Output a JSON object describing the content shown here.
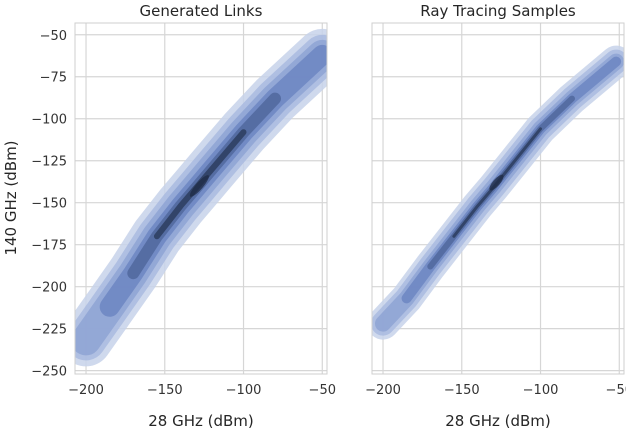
{
  "chart_data": [
    {
      "type": "kde-contour",
      "title": "Generated Links",
      "xlabel": "28 GHz (dBm)",
      "ylabel": "140 GHz (dBm)",
      "xlim": [
        -207,
        -47
      ],
      "ylim": [
        -252,
        -43
      ],
      "xticks": [
        -200,
        -150,
        -100,
        -50
      ],
      "yticks": [
        -50,
        -75,
        -100,
        -125,
        -150,
        -175,
        -200,
        -225,
        -250
      ],
      "grid": true,
      "color": "#4c72b0",
      "density_ridge": [
        {
          "x": -200,
          "y": -232
        },
        {
          "x": -185,
          "y": -212
        },
        {
          "x": -170,
          "y": -192
        },
        {
          "x": -155,
          "y": -170
        },
        {
          "x": -140,
          "y": -152
        },
        {
          "x": -130,
          "y": -141
        },
        {
          "x": -120,
          "y": -130
        },
        {
          "x": -100,
          "y": -108
        },
        {
          "x": -80,
          "y": -88
        },
        {
          "x": -50,
          "y": -62
        }
      ],
      "peak": {
        "x": -128,
        "y": -140
      }
    },
    {
      "type": "kde-contour",
      "title": "Ray Tracing Samples",
      "xlabel": "28 GHz (dBm)",
      "xlim": [
        -207,
        -47
      ],
      "ylim": [
        -252,
        -43
      ],
      "xticks": [
        -200,
        -150,
        -100,
        -50
      ],
      "grid": true,
      "color": "#4c72b0",
      "density_ridge": [
        {
          "x": -200,
          "y": -222
        },
        {
          "x": -185,
          "y": -207
        },
        {
          "x": -170,
          "y": -188
        },
        {
          "x": -155,
          "y": -170
        },
        {
          "x": -140,
          "y": -152
        },
        {
          "x": -130,
          "y": -141
        },
        {
          "x": -118,
          "y": -127
        },
        {
          "x": -100,
          "y": -106
        },
        {
          "x": -80,
          "y": -88
        },
        {
          "x": -52,
          "y": -66
        }
      ],
      "peak": {
        "x": -128,
        "y": -138
      }
    }
  ]
}
